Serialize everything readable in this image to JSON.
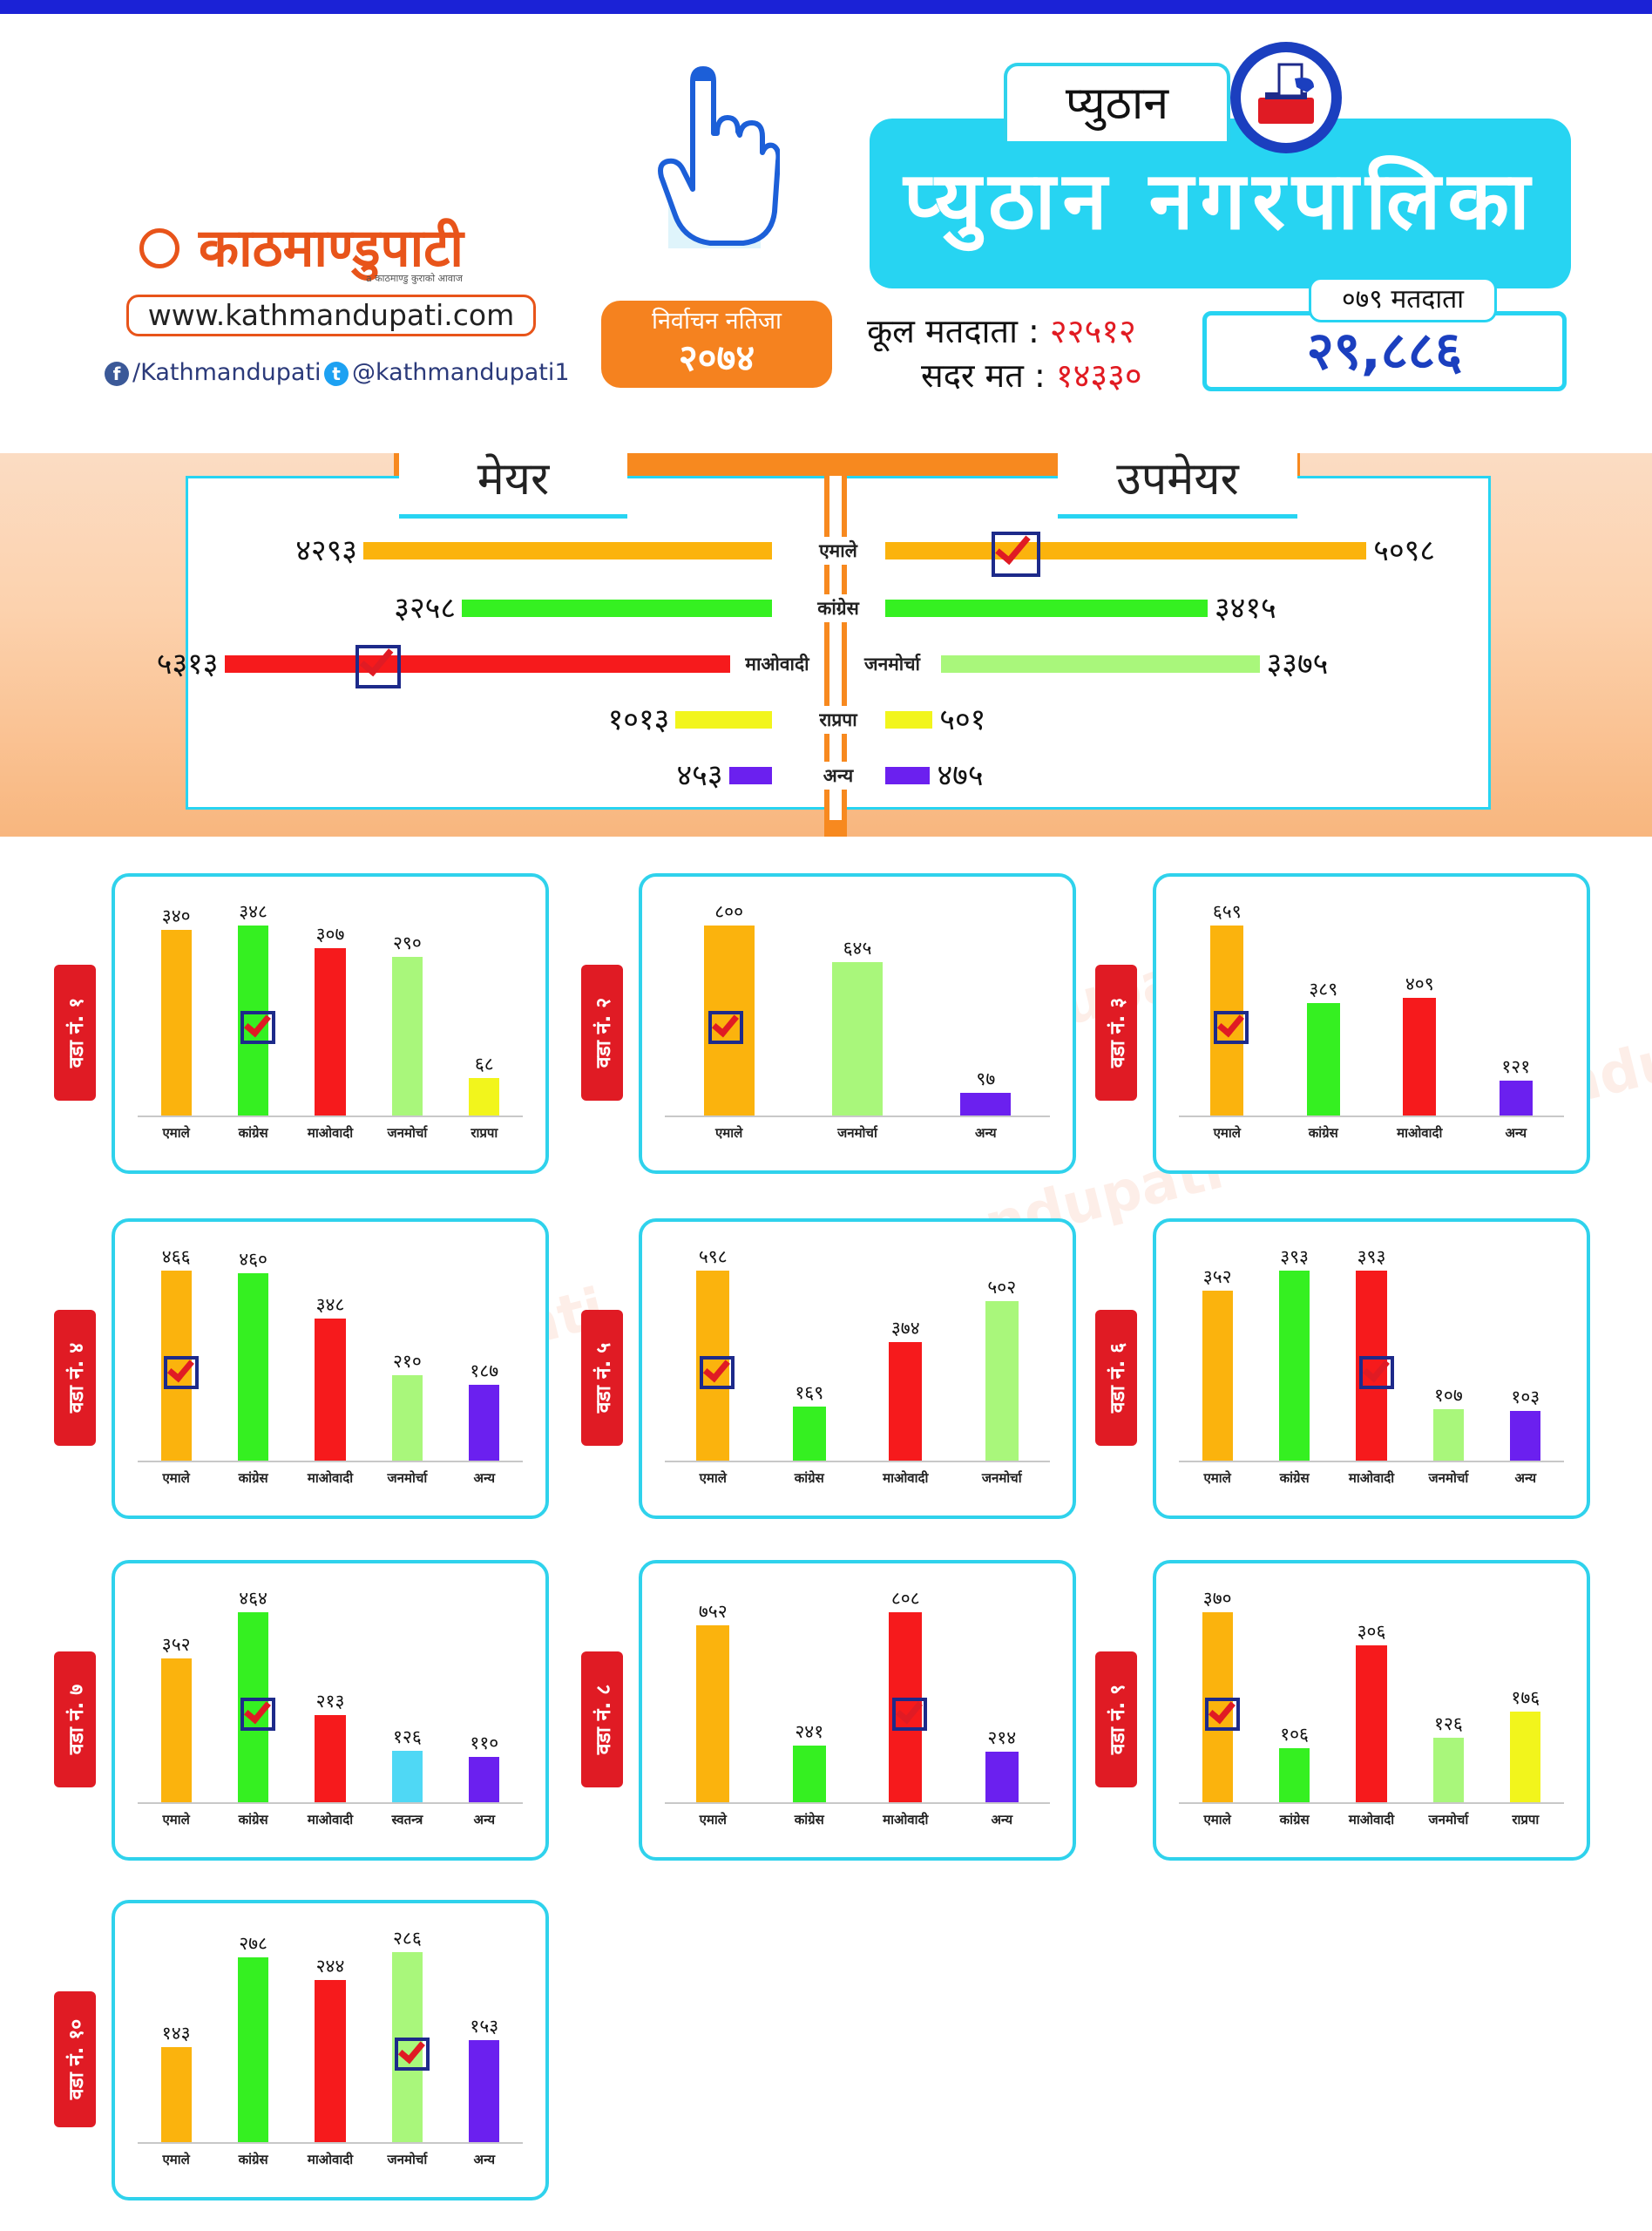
{
  "brand": {
    "logo_text": "काठमाण्डुपाटी",
    "logo_tagline": "a काठमाण्डु कुराको आवाज",
    "website": "www.kathmandupati.com",
    "facebook": "/Kathmandupati",
    "twitter": "@kathmandupati1"
  },
  "header": {
    "result_label": "निर्वाचन नतिजा",
    "result_year": "२०७४",
    "district": "प्युठान",
    "municipality": "प्युठान नगरपालिका",
    "total_voters_label": "कूल मतदाता :",
    "total_voters_value": "२२५१२",
    "valid_votes_label": "सदर मत :",
    "valid_votes_value": "१४३३०",
    "voters_079_label": "०७९ मतदाता",
    "voters_079_value": "२९,८८६"
  },
  "colors": {
    "एमाले": "#fbb30d",
    "कांग्रेस": "#35f021",
    "माओवादी": "#f61a1c",
    "जनमोर्चा": "#a9f77b",
    "राप्रपा": "#f2f51c",
    "अन्य": "#6b20ef",
    "स्वतन्त्र": "#4fd8f5"
  },
  "chart_data": [
    {
      "type": "bar",
      "id": "mayor",
      "title": "मेयर",
      "series": [
        {
          "party": "एमाले",
          "value": 4293,
          "label": "४२९३"
        },
        {
          "party": "कांग्रेस",
          "value": 3258,
          "label": "३२५८"
        },
        {
          "party": "माओवादी",
          "value": 5313,
          "label": "५३१३",
          "winner": true
        },
        {
          "party": "राप्रपा",
          "value": 1013,
          "label": "१०१३"
        },
        {
          "party": "अन्य",
          "value": 453,
          "label": "४५३"
        }
      ]
    },
    {
      "type": "bar",
      "id": "deputy_mayor",
      "title": "उपमेयर",
      "series": [
        {
          "party": "एमाले",
          "value": 5098,
          "label": "५०९८",
          "winner": true
        },
        {
          "party": "कांग्रेस",
          "value": 3415,
          "label": "३४१५"
        },
        {
          "party": "जनमोर्चा",
          "value": 3375,
          "label": "३३७५"
        },
        {
          "party": "राप्रपा",
          "value": 501,
          "label": "५०१"
        },
        {
          "party": "अन्य",
          "value": 475,
          "label": "४७५"
        }
      ]
    },
    {
      "type": "bar",
      "ward": "वडा नं. १",
      "categories": [
        "एमाले",
        "कांग्रेस",
        "माओवादी",
        "जनमोर्चा",
        "राप्रपा"
      ],
      "values": [
        340,
        348,
        307,
        290,
        68
      ],
      "labels": [
        "३४०",
        "३४८",
        "३०७",
        "२९०",
        "६८"
      ],
      "winner": 1
    },
    {
      "type": "bar",
      "ward": "वडा नं. २",
      "categories": [
        "एमाले",
        "जनमोर्चा",
        "अन्य"
      ],
      "values": [
        800,
        645,
        97
      ],
      "labels": [
        "८००",
        "६४५",
        "९७"
      ],
      "winner": 0
    },
    {
      "type": "bar",
      "ward": "वडा नं. ३",
      "categories": [
        "एमाले",
        "कांग्रेस",
        "माओवादी",
        "अन्य"
      ],
      "values": [
        659,
        389,
        409,
        121
      ],
      "labels": [
        "६५९",
        "३८९",
        "४०९",
        "१२१"
      ],
      "winner": 0
    },
    {
      "type": "bar",
      "ward": "वडा नं. ४",
      "categories": [
        "एमाले",
        "कांग्रेस",
        "माओवादी",
        "जनमोर्चा",
        "अन्य"
      ],
      "values": [
        466,
        460,
        348,
        210,
        187
      ],
      "labels": [
        "४६६",
        "४६०",
        "३४८",
        "२१०",
        "१८७"
      ],
      "winner": 0
    },
    {
      "type": "bar",
      "ward": "वडा नं. ५",
      "categories": [
        "एमाले",
        "कांग्रेस",
        "माओवादी",
        "जनमोर्चा"
      ],
      "values": [
        598,
        169,
        374,
        502
      ],
      "labels": [
        "५९८",
        "१६९",
        "३७४",
        "५०२"
      ],
      "winner": 0
    },
    {
      "type": "bar",
      "ward": "वडा नं. ६",
      "categories": [
        "एमाले",
        "कांग्रेस",
        "माओवादी",
        "जनमोर्चा",
        "अन्य"
      ],
      "values": [
        352,
        393,
        393,
        107,
        103
      ],
      "labels": [
        "३५२",
        "३९३",
        "३९३",
        "१०७",
        "१०३"
      ],
      "winner": 2
    },
    {
      "type": "bar",
      "ward": "वडा नं. ७",
      "categories": [
        "एमाले",
        "कांग्रेस",
        "माओवादी",
        "स्वतन्त्र",
        "अन्य"
      ],
      "values": [
        352,
        464,
        213,
        126,
        110
      ],
      "labels": [
        "३५२",
        "४६४",
        "२१३",
        "१२६",
        "११०"
      ],
      "winner": 1
    },
    {
      "type": "bar",
      "ward": "वडा नं. ८",
      "categories": [
        "एमाले",
        "कांग्रेस",
        "माओवादी",
        "अन्य"
      ],
      "values": [
        752,
        241,
        808,
        214
      ],
      "labels": [
        "७५२",
        "२४१",
        "८०८",
        "२१४"
      ],
      "winner": 2
    },
    {
      "type": "bar",
      "ward": "वडा नं. ९",
      "categories": [
        "एमाले",
        "कांग्रेस",
        "माओवादी",
        "जनमोर्चा",
        "राप्रपा"
      ],
      "values": [
        370,
        106,
        306,
        126,
        176
      ],
      "labels": [
        "३७०",
        "१०६",
        "३०६",
        "१२६",
        "१७६"
      ],
      "winner": 0
    },
    {
      "type": "bar",
      "ward": "वडा नं. १०",
      "categories": [
        "एमाले",
        "कांग्रेस",
        "माओवादी",
        "जनमोर्चा",
        "अन्य"
      ],
      "values": [
        143,
        278,
        244,
        286,
        153
      ],
      "labels": [
        "१४३",
        "२७८",
        "२४४",
        "२८६",
        "१५३"
      ],
      "winner": 3
    }
  ]
}
